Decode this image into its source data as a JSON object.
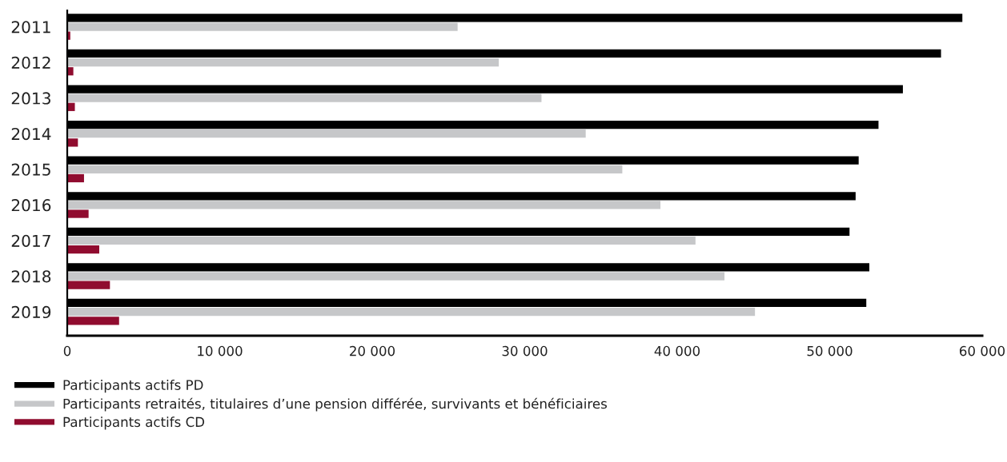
{
  "chart_data": {
    "type": "bar",
    "orientation": "horizontal",
    "categories": [
      "2011",
      "2012",
      "2013",
      "2014",
      "2015",
      "2016",
      "2017",
      "2018",
      "2019"
    ],
    "series": [
      {
        "name": "Participants actifs PD",
        "color": "#000000",
        "values": [
          58700,
          57300,
          54800,
          53200,
          51900,
          51700,
          51300,
          52600,
          52400
        ]
      },
      {
        "name": "Participants retraités, titulaires d’une pension différée, survivants et bénéficiaires",
        "color": "#c6c7c9",
        "values": [
          25600,
          28300,
          31100,
          34000,
          36400,
          38900,
          41200,
          43100,
          45100
        ]
      },
      {
        "name": "Participants actifs CD",
        "color": "#900c2f",
        "values": [
          200,
          400,
          500,
          700,
          1100,
          1400,
          2100,
          2800,
          3400
        ]
      }
    ],
    "xlim": [
      0,
      60000
    ],
    "xticks": [
      0,
      {
        "value": 10000,
        "label": "10 000"
      },
      {
        "value": 20000,
        "label": "20 000"
      },
      {
        "value": 30000,
        "label": "30 000"
      },
      {
        "value": 40000,
        "label": "40 000"
      },
      {
        "value": 50000,
        "label": "50 000"
      },
      {
        "value": 60000,
        "label": "60 000"
      }
    ],
    "legend": "bottom left"
  }
}
